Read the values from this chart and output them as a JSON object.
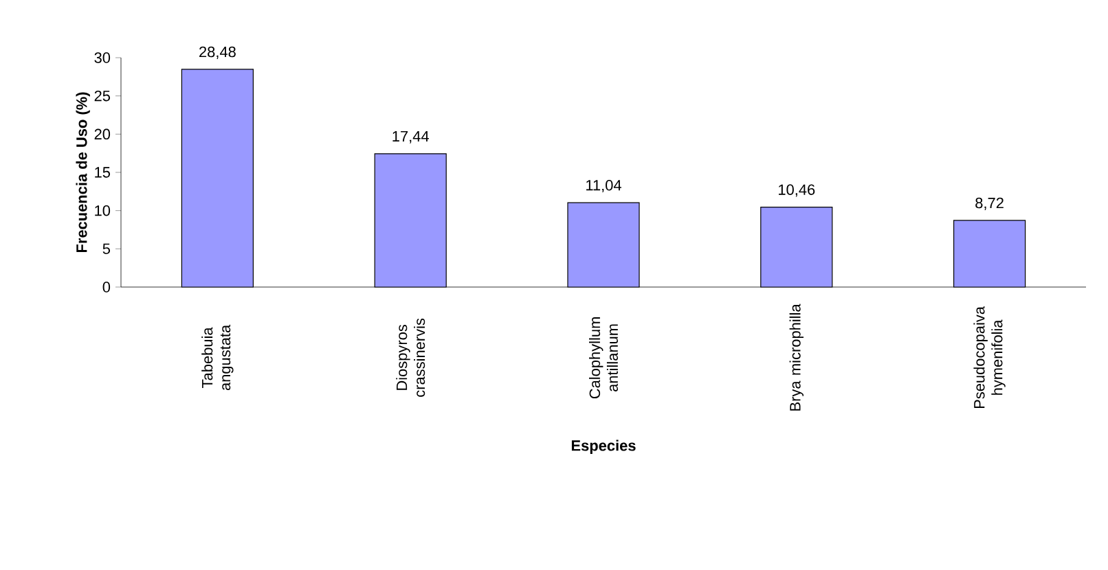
{
  "chart_data": {
    "type": "bar",
    "xlabel": "Especies",
    "ylabel": "Frecuencia de Uso (%)",
    "categories": [
      "Tabebuia angustata",
      "Diospyros crassinervis",
      "Calophyllum antillanum",
      "Brya microphilla",
      "Pseudocopaiva hymenifolia"
    ],
    "values": [
      28.48,
      17.44,
      11.04,
      10.46,
      8.72
    ],
    "value_labels": [
      "28,48",
      "17,44",
      "11,04",
      "10,46",
      "8,72"
    ],
    "color": "#9999ff",
    "ylim": [
      0,
      30
    ],
    "yticks": [
      0,
      5,
      10,
      15,
      20,
      25,
      30
    ],
    "grid": false
  }
}
